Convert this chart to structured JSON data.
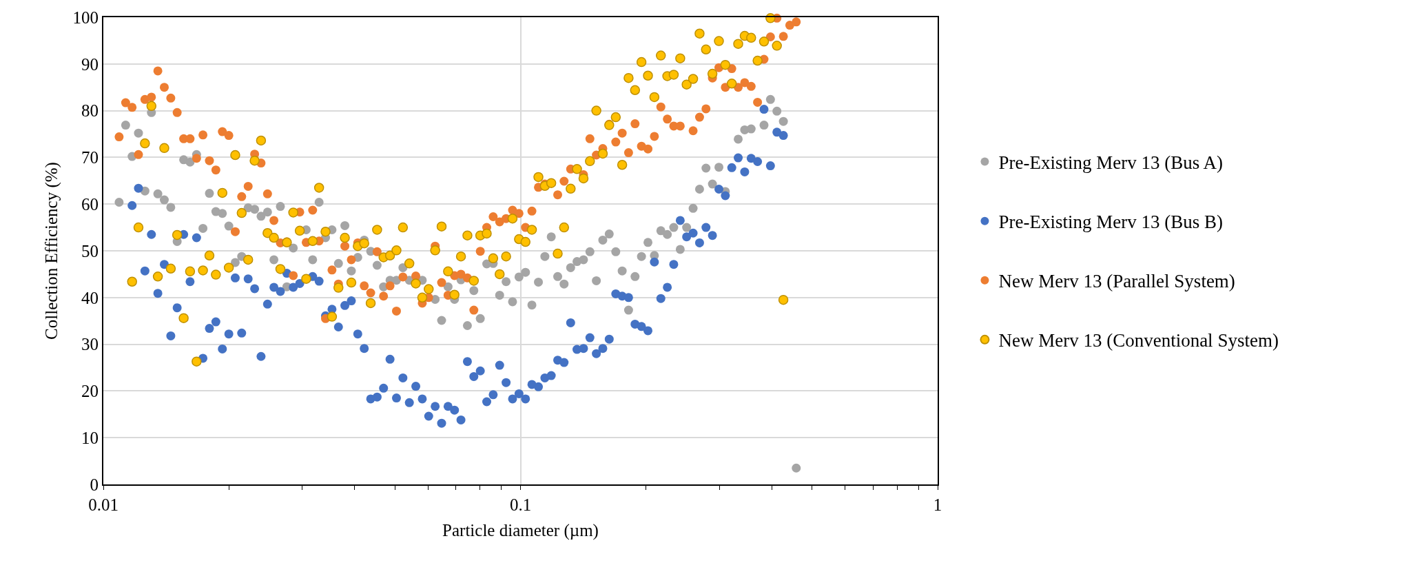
{
  "chart_data": {
    "type": "scatter",
    "xlabel": "Particle diameter (µm)",
    "ylabel": "Collection Efficiency (%)",
    "log": "x",
    "grid": true,
    "legend": "right",
    "marker": "circle",
    "xlim": [
      0.01,
      1
    ],
    "xticks": [
      0.01,
      0.1,
      1
    ],
    "ylim": [
      0,
      100
    ],
    "yticks": [
      0,
      10,
      20,
      30,
      40,
      50,
      60,
      70,
      80,
      90,
      100
    ],
    "x": [
      0.01091,
      0.01131,
      0.01172,
      0.01214,
      0.01258,
      0.01304,
      0.01351,
      0.014,
      0.01451,
      0.01503,
      0.01558,
      0.01614,
      0.01673,
      0.01733,
      0.01796,
      0.01861,
      0.01929,
      0.01999,
      0.02071,
      0.02146,
      0.02224,
      0.02305,
      0.02388,
      0.02475,
      0.02564,
      0.02657,
      0.02754,
      0.02853,
      0.02957,
      0.03064,
      0.03175,
      0.0329,
      0.03409,
      0.03533,
      0.03661,
      0.03793,
      0.03931,
      0.04073,
      0.04221,
      0.04374,
      0.04532,
      0.04696,
      0.04867,
      0.05043,
      0.05226,
      0.05415,
      0.05611,
      0.05815,
      0.06025,
      0.06244,
      0.0647,
      0.06704,
      0.06947,
      0.07199,
      0.0746,
      0.0773,
      0.0801,
      0.083,
      0.08601,
      0.08913,
      0.09236,
      0.09571,
      0.09918,
      0.1028,
      0.1065,
      0.1104,
      0.1144,
      0.1185,
      0.1228,
      0.1272,
      0.1319,
      0.1366,
      0.1416,
      0.1467,
      0.152,
      0.1575,
      0.1632,
      0.1692,
      0.1753,
      0.1816,
      0.1882,
      0.195,
      0.2021,
      0.2094,
      0.217,
      0.2249,
      0.233,
      0.2415,
      0.2502,
      0.2593,
      0.2687,
      0.2784,
      0.2885,
      0.299,
      0.3098,
      0.321,
      0.3326,
      0.3447,
      0.3572,
      0.3701,
      0.3835,
      0.3974,
      0.4118,
      0.4268,
      0.4422,
      0.4582
    ],
    "series": [
      {
        "name": "Pre-Existing Merv 13 (Bus A)",
        "color": "#a5a5a5",
        "values": [
          60.4,
          76.9,
          70.2,
          75.2,
          62.8,
          79.6,
          62.2,
          60.9,
          59.3,
          52.0,
          69.5,
          69.0,
          70.6,
          54.8,
          62.3,
          58.4,
          58.0,
          55.3,
          47.5,
          48.8,
          59.2,
          58.9,
          57.4,
          58.3,
          48.1,
          59.5,
          42.3,
          50.6,
          null,
          54.5,
          48.1,
          60.4,
          52.8,
          54.5,
          47.3,
          55.4,
          45.7,
          48.6,
          52.3,
          49.9,
          46.9,
          42.3,
          43.7,
          43.7,
          46.4,
          43.7,
          null,
          43.7,
          null,
          39.6,
          35.1,
          42.3,
          39.6,
          43.8,
          34.0,
          41.5,
          35.5,
          47.2,
          47.3,
          40.5,
          43.4,
          39.1,
          44.4,
          45.4,
          38.4,
          43.3,
          48.8,
          53.0,
          44.5,
          42.9,
          46.4,
          47.7,
          48.1,
          49.8,
          43.6,
          52.3,
          53.6,
          49.8,
          45.7,
          37.3,
          44.5,
          48.8,
          51.8,
          49.0,
          54.3,
          53.5,
          55.0,
          50.3,
          55.0,
          59.1,
          63.2,
          67.7,
          64.3,
          67.9,
          62.7,
          null,
          73.9,
          75.9,
          76.1,
          null,
          76.9,
          82.4,
          79.9,
          77.7,
          null,
          3.5
        ]
      },
      {
        "name": "Pre-Existing Merv 13 (Bus B)",
        "color": "#4472c4",
        "values": [
          null,
          null,
          59.7,
          63.4,
          45.7,
          53.5,
          40.9,
          47.1,
          31.8,
          37.8,
          53.5,
          43.4,
          52.8,
          27.0,
          33.4,
          34.8,
          29.0,
          32.2,
          44.2,
          32.4,
          44.0,
          41.9,
          27.4,
          38.6,
          42.2,
          41.3,
          45.2,
          42.2,
          43.0,
          null,
          44.5,
          43.5,
          36.1,
          37.5,
          33.7,
          38.3,
          39.3,
          32.2,
          29.1,
          18.3,
          18.7,
          20.6,
          26.8,
          18.5,
          22.8,
          17.5,
          21.0,
          18.3,
          14.6,
          16.7,
          13.1,
          16.7,
          15.9,
          13.8,
          26.3,
          23.1,
          24.3,
          17.7,
          19.2,
          25.5,
          21.8,
          18.3,
          19.4,
          18.3,
          21.4,
          20.9,
          22.8,
          23.3,
          26.6,
          26.1,
          34.6,
          28.9,
          29.1,
          31.4,
          28.0,
          29.1,
          31.1,
          40.8,
          40.3,
          40.0,
          34.3,
          33.8,
          32.9,
          47.6,
          39.8,
          42.2,
          47.1,
          56.5,
          53.0,
          53.8,
          51.7,
          55.0,
          53.3,
          63.2,
          61.8,
          67.8,
          69.9,
          66.9,
          69.8,
          69.1,
          80.3,
          68.2,
          75.4,
          74.7,
          null,
          null
        ]
      },
      {
        "name": "New Merv 13 (Parallel System)",
        "color": "#ed7d31",
        "values": [
          74.4,
          81.7,
          80.7,
          70.6,
          82.4,
          82.9,
          88.5,
          85.0,
          82.7,
          79.6,
          74.0,
          74.0,
          69.8,
          74.8,
          69.3,
          67.3,
          75.5,
          74.7,
          54.1,
          61.6,
          63.8,
          70.7,
          68.8,
          62.2,
          56.5,
          51.7,
          51.9,
          44.7,
          58.3,
          51.8,
          58.7,
          52.1,
          35.5,
          45.9,
          42.9,
          51.0,
          48.1,
          51.7,
          42.5,
          41.0,
          49.8,
          40.3,
          42.5,
          37.1,
          44.4,
          null,
          44.6,
          38.8,
          40.0,
          51.0,
          43.2,
          40.5,
          44.7,
          45.0,
          44.2,
          37.3,
          49.9,
          55.0,
          57.3,
          56.2,
          56.9,
          58.7,
          58.0,
          55.0,
          58.5,
          63.6,
          64.3,
          null,
          62.0,
          64.9,
          67.5,
          null,
          66.3,
          74.0,
          70.5,
          71.9,
          77.1,
          73.3,
          75.2,
          71.0,
          77.2,
          72.4,
          71.8,
          74.5,
          80.8,
          78.2,
          76.7,
          76.7,
          null,
          75.7,
          78.6,
          80.4,
          87.0,
          89.2,
          85.0,
          89.0,
          85.0,
          86.0,
          85.2,
          81.8,
          91.0,
          95.8,
          99.8,
          95.9,
          98.3,
          99.0
        ]
      },
      {
        "name": "New Merv 13 (Conventional System)",
        "color": "#ffc000",
        "values": [
          null,
          null,
          43.4,
          55.0,
          73.0,
          81.0,
          44.5,
          72.0,
          46.2,
          53.4,
          35.6,
          45.6,
          26.3,
          45.8,
          49.0,
          44.9,
          62.4,
          46.4,
          70.5,
          58.1,
          48.1,
          69.3,
          73.6,
          53.8,
          52.8,
          46.1,
          51.8,
          58.2,
          54.3,
          44.0,
          52.1,
          63.5,
          54.1,
          35.9,
          42.1,
          52.8,
          43.2,
          51.0,
          51.6,
          38.8,
          54.5,
          48.6,
          49.0,
          50.1,
          55.0,
          47.3,
          43.0,
          40.0,
          41.8,
          50.1,
          55.2,
          45.6,
          40.6,
          48.8,
          53.3,
          43.6,
          53.3,
          53.7,
          48.4,
          45.0,
          48.8,
          56.9,
          52.5,
          51.9,
          54.5,
          65.8,
          63.9,
          64.5,
          49.4,
          55.0,
          63.3,
          67.5,
          65.5,
          69.2,
          80.0,
          70.8,
          76.9,
          78.6,
          68.4,
          87.0,
          84.4,
          90.4,
          87.5,
          82.9,
          91.8,
          87.4,
          87.7,
          91.2,
          85.6,
          86.8,
          96.5,
          93.1,
          87.9,
          94.9,
          89.8,
          85.8,
          94.3,
          96.0,
          95.6,
          90.7,
          94.8,
          99.8,
          93.9,
          39.5,
          null,
          null
        ]
      }
    ]
  }
}
